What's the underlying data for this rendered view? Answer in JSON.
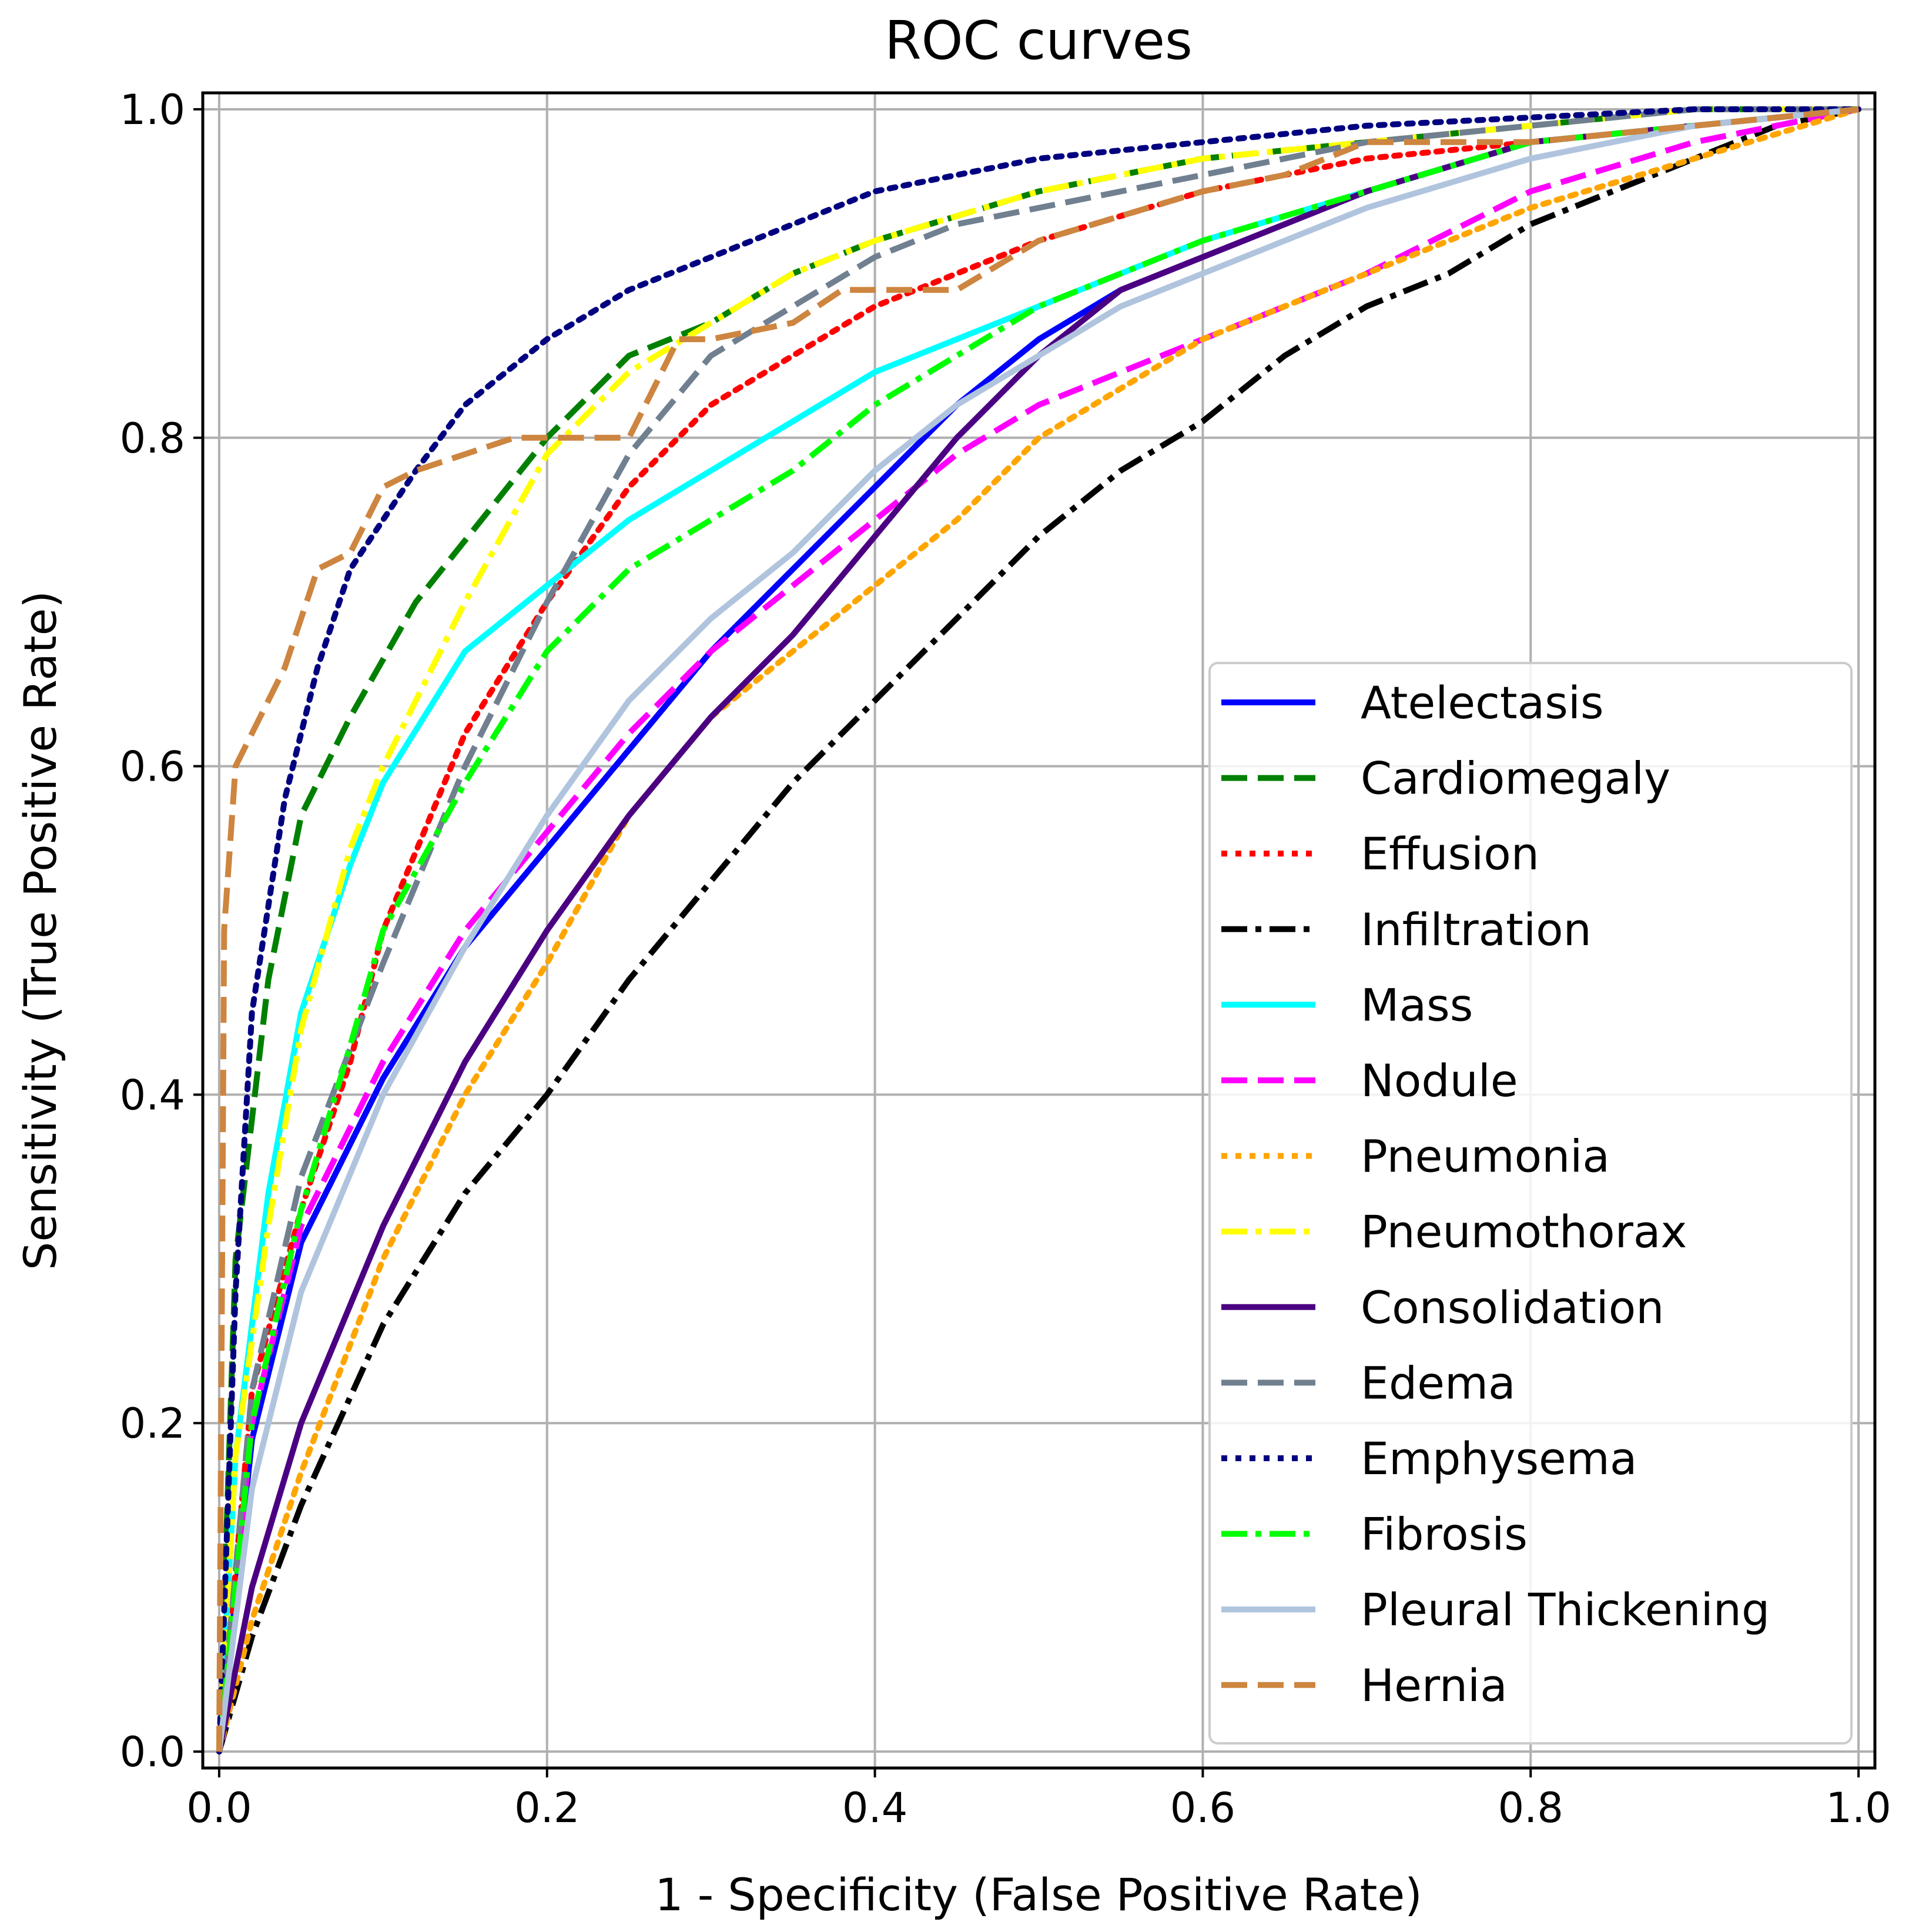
{
  "chart_data": {
    "type": "line",
    "title": "ROC curves",
    "xlabel": "1 - Specificity (False Positive Rate)",
    "ylabel": "Sensitivity (True Positive Rate)",
    "xlim": [
      -0.01,
      1.01
    ],
    "ylim": [
      -0.01,
      1.01
    ],
    "xticks": [
      0.0,
      0.2,
      0.4,
      0.6,
      0.8,
      1.0
    ],
    "yticks": [
      0.0,
      0.2,
      0.4,
      0.6,
      0.8,
      1.0
    ],
    "xtick_labels": [
      "0.0",
      "0.2",
      "0.4",
      "0.6",
      "0.8",
      "1.0"
    ],
    "ytick_labels": [
      "0.0",
      "0.2",
      "0.4",
      "0.6",
      "0.8",
      "1.0"
    ],
    "grid": true,
    "legend_position": "lower-right",
    "series": [
      {
        "name": "Atelectasis",
        "color": "#0000ff",
        "style": "solid",
        "x": [
          0,
          0.02,
          0.05,
          0.1,
          0.15,
          0.2,
          0.25,
          0.3,
          0.35,
          0.4,
          0.45,
          0.5,
          0.55,
          0.6,
          0.7,
          0.8,
          0.9,
          1.0
        ],
        "y": [
          0,
          0.19,
          0.31,
          0.41,
          0.49,
          0.55,
          0.61,
          0.67,
          0.72,
          0.77,
          0.82,
          0.86,
          0.89,
          0.91,
          0.95,
          0.98,
          0.99,
          1.0
        ]
      },
      {
        "name": "Cardiomegaly",
        "color": "#008000",
        "style": "dashed",
        "x": [
          0,
          0.01,
          0.03,
          0.05,
          0.08,
          0.12,
          0.16,
          0.2,
          0.25,
          0.3,
          0.35,
          0.4,
          0.5,
          0.6,
          0.7,
          0.8,
          0.9,
          1.0
        ],
        "y": [
          0,
          0.3,
          0.47,
          0.57,
          0.63,
          0.7,
          0.75,
          0.8,
          0.85,
          0.87,
          0.9,
          0.92,
          0.95,
          0.97,
          0.98,
          0.99,
          1.0,
          1.0
        ]
      },
      {
        "name": "Effusion",
        "color": "#ff0000",
        "style": "dotted",
        "x": [
          0,
          0.02,
          0.05,
          0.08,
          0.1,
          0.15,
          0.2,
          0.25,
          0.3,
          0.35,
          0.4,
          0.5,
          0.6,
          0.7,
          0.8,
          0.9,
          1.0
        ],
        "y": [
          0,
          0.22,
          0.33,
          0.42,
          0.5,
          0.62,
          0.7,
          0.77,
          0.82,
          0.85,
          0.88,
          0.92,
          0.95,
          0.97,
          0.98,
          0.99,
          1.0
        ]
      },
      {
        "name": "Infiltration",
        "color": "#000000",
        "style": "dashdot",
        "x": [
          0,
          0.02,
          0.05,
          0.1,
          0.15,
          0.2,
          0.25,
          0.3,
          0.35,
          0.4,
          0.45,
          0.5,
          0.55,
          0.6,
          0.65,
          0.7,
          0.75,
          0.8,
          0.85,
          0.9,
          0.95,
          1.0
        ],
        "y": [
          0,
          0.07,
          0.15,
          0.26,
          0.34,
          0.4,
          0.47,
          0.53,
          0.59,
          0.64,
          0.69,
          0.74,
          0.78,
          0.81,
          0.85,
          0.88,
          0.9,
          0.93,
          0.95,
          0.97,
          0.99,
          1.0
        ]
      },
      {
        "name": "Mass",
        "color": "#00ffff",
        "style": "solid",
        "x": [
          0,
          0.01,
          0.03,
          0.05,
          0.08,
          0.1,
          0.15,
          0.2,
          0.25,
          0.3,
          0.35,
          0.4,
          0.5,
          0.6,
          0.7,
          0.8,
          0.9,
          1.0
        ],
        "y": [
          0,
          0.18,
          0.34,
          0.45,
          0.54,
          0.59,
          0.67,
          0.71,
          0.75,
          0.78,
          0.81,
          0.84,
          0.88,
          0.92,
          0.95,
          0.98,
          0.99,
          1.0
        ]
      },
      {
        "name": "Nodule",
        "color": "#ff00ff",
        "style": "dashed",
        "x": [
          0,
          0.02,
          0.05,
          0.1,
          0.15,
          0.2,
          0.25,
          0.3,
          0.35,
          0.4,
          0.45,
          0.5,
          0.55,
          0.6,
          0.7,
          0.8,
          0.9,
          1.0
        ],
        "y": [
          0,
          0.2,
          0.32,
          0.42,
          0.5,
          0.56,
          0.62,
          0.67,
          0.71,
          0.75,
          0.79,
          0.82,
          0.84,
          0.86,
          0.9,
          0.95,
          0.98,
          1.0
        ]
      },
      {
        "name": "Pneumonia",
        "color": "#ffa500",
        "style": "dotted",
        "x": [
          0,
          0.02,
          0.05,
          0.1,
          0.15,
          0.2,
          0.25,
          0.3,
          0.35,
          0.4,
          0.45,
          0.5,
          0.55,
          0.6,
          0.7,
          0.8,
          0.9,
          1.0
        ],
        "y": [
          0,
          0.08,
          0.17,
          0.3,
          0.4,
          0.48,
          0.57,
          0.63,
          0.67,
          0.71,
          0.75,
          0.8,
          0.83,
          0.86,
          0.9,
          0.94,
          0.97,
          1.0
        ]
      },
      {
        "name": "Pneumothorax",
        "color": "#ffff00",
        "style": "dashdot",
        "x": [
          0,
          0.01,
          0.03,
          0.05,
          0.08,
          0.1,
          0.15,
          0.2,
          0.25,
          0.3,
          0.35,
          0.4,
          0.5,
          0.6,
          0.7,
          0.8,
          0.9,
          1.0
        ],
        "y": [
          0,
          0.18,
          0.32,
          0.44,
          0.55,
          0.6,
          0.7,
          0.79,
          0.84,
          0.87,
          0.9,
          0.92,
          0.95,
          0.97,
          0.98,
          0.99,
          1.0,
          1.0
        ]
      },
      {
        "name": "Consolidation",
        "color": "#4b0082",
        "style": "solid",
        "x": [
          0,
          0.02,
          0.05,
          0.1,
          0.15,
          0.2,
          0.25,
          0.3,
          0.35,
          0.4,
          0.45,
          0.5,
          0.55,
          0.6,
          0.7,
          0.8,
          0.9,
          1.0
        ],
        "y": [
          0,
          0.1,
          0.2,
          0.32,
          0.42,
          0.5,
          0.57,
          0.63,
          0.68,
          0.74,
          0.8,
          0.85,
          0.89,
          0.91,
          0.95,
          0.98,
          0.99,
          1.0
        ]
      },
      {
        "name": "Edema",
        "color": "#708090",
        "style": "dashed",
        "x": [
          0,
          0.02,
          0.05,
          0.1,
          0.15,
          0.2,
          0.25,
          0.3,
          0.35,
          0.4,
          0.45,
          0.5,
          0.6,
          0.7,
          0.8,
          0.9,
          1.0
        ],
        "y": [
          0,
          0.22,
          0.35,
          0.48,
          0.6,
          0.7,
          0.79,
          0.85,
          0.88,
          0.91,
          0.93,
          0.94,
          0.96,
          0.98,
          0.99,
          1.0,
          1.0
        ]
      },
      {
        "name": "Emphysema",
        "color": "#000080",
        "style": "dotted",
        "x": [
          0,
          0.01,
          0.02,
          0.04,
          0.06,
          0.08,
          0.1,
          0.12,
          0.15,
          0.2,
          0.25,
          0.3,
          0.35,
          0.4,
          0.5,
          0.6,
          0.7,
          0.8,
          0.9,
          1.0
        ],
        "y": [
          0,
          0.28,
          0.45,
          0.58,
          0.66,
          0.72,
          0.75,
          0.78,
          0.82,
          0.86,
          0.89,
          0.91,
          0.93,
          0.95,
          0.97,
          0.98,
          0.99,
          0.995,
          1.0,
          1.0
        ]
      },
      {
        "name": "Fibrosis",
        "color": "#00ff00",
        "style": "dashdot",
        "x": [
          0,
          0.02,
          0.05,
          0.08,
          0.1,
          0.15,
          0.2,
          0.25,
          0.3,
          0.35,
          0.4,
          0.45,
          0.5,
          0.6,
          0.7,
          0.8,
          0.9,
          1.0
        ],
        "y": [
          0,
          0.2,
          0.33,
          0.43,
          0.5,
          0.59,
          0.67,
          0.72,
          0.75,
          0.78,
          0.82,
          0.85,
          0.88,
          0.92,
          0.95,
          0.98,
          0.99,
          1.0
        ]
      },
      {
        "name": "Pleural Thickening",
        "color": "#b0c4de",
        "style": "solid",
        "x": [
          0,
          0.02,
          0.05,
          0.1,
          0.15,
          0.2,
          0.25,
          0.3,
          0.35,
          0.4,
          0.45,
          0.5,
          0.55,
          0.6,
          0.7,
          0.8,
          0.9,
          1.0
        ],
        "y": [
          0,
          0.16,
          0.28,
          0.4,
          0.49,
          0.57,
          0.64,
          0.69,
          0.73,
          0.78,
          0.82,
          0.85,
          0.88,
          0.9,
          0.94,
          0.97,
          0.99,
          1.0
        ]
      },
      {
        "name": "Hernia",
        "color": "#cd853f",
        "style": "dashed",
        "x": [
          0,
          0.003,
          0.01,
          0.02,
          0.04,
          0.06,
          0.08,
          0.1,
          0.12,
          0.15,
          0.18,
          0.2,
          0.25,
          0.28,
          0.3,
          0.35,
          0.38,
          0.45,
          0.5,
          0.6,
          0.65,
          0.7,
          0.8,
          0.9,
          1.0
        ],
        "y": [
          0,
          0.5,
          0.6,
          0.62,
          0.66,
          0.72,
          0.73,
          0.77,
          0.78,
          0.79,
          0.8,
          0.8,
          0.8,
          0.86,
          0.86,
          0.87,
          0.89,
          0.89,
          0.92,
          0.95,
          0.96,
          0.98,
          0.98,
          0.99,
          1.0
        ]
      }
    ]
  }
}
